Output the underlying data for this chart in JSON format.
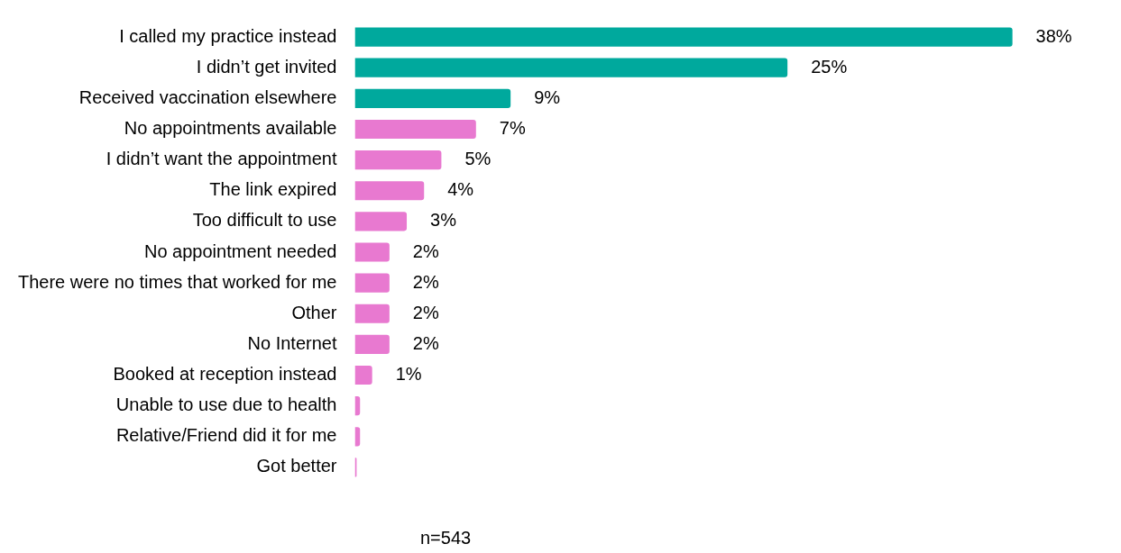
{
  "chart_data": {
    "type": "bar",
    "orientation": "horizontal",
    "categories": [
      "I called my practice instead",
      "I didn’t get invited",
      "Received vaccination elsewhere",
      "No appointments available",
      "I didn’t want the appointment",
      "The link expired",
      "Too difficult to use",
      "No appointment needed",
      "There were no times that worked for me",
      "Other",
      "No Internet",
      "Booked at reception instead",
      "Unable to use due to health",
      "Relative/Friend did it for me",
      "Got better"
    ],
    "values": [
      38,
      25,
      9,
      7,
      5,
      4,
      3,
      2,
      2,
      2,
      2,
      1,
      0.3,
      0.3,
      0.1
    ],
    "value_labels": [
      "38%",
      "25%",
      "9%",
      "7%",
      "5%",
      "4%",
      "3%",
      "2%",
      "2%",
      "2%",
      "2%",
      "1%",
      null,
      null,
      null
    ],
    "colors": [
      "#00a99d",
      "#00a99d",
      "#00a99d",
      "#e879d0",
      "#e879d0",
      "#e879d0",
      "#e879d0",
      "#e879d0",
      "#e879d0",
      "#e879d0",
      "#e879d0",
      "#e879d0",
      "#e879d0",
      "#e879d0",
      "#e879d0"
    ],
    "tick_labels": "y",
    "legend": false,
    "annotations": [
      "n=543"
    ]
  }
}
